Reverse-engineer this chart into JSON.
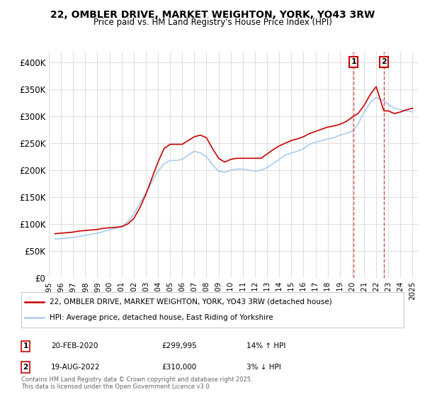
{
  "title_line1": "22, OMBLER DRIVE, MARKET WEIGHTON, YORK, YO43 3RW",
  "title_line2": "Price paid vs. HM Land Registry's House Price Index (HPI)",
  "ylabel": "",
  "background_color": "#ffffff",
  "plot_background": "#ffffff",
  "grid_color": "#e0e0e0",
  "red_line_color": "#cc0000",
  "blue_line_color": "#aaccee",
  "annotation1": {
    "label": "1",
    "date": "20-FEB-2020",
    "price": "£299,995",
    "hpi": "14% ↑ HPI",
    "x_year": 2020.13
  },
  "annotation2": {
    "label": "2",
    "date": "19-AUG-2022",
    "price": "£310,000",
    "hpi": "3% ↓ HPI",
    "x_year": 2022.63
  },
  "legend_line1": "22, OMBLER DRIVE, MARKET WEIGHTON, YORK, YO43 3RW (detached house)",
  "legend_line2": "HPI: Average price, detached house, East Riding of Yorkshire",
  "footer": "Contains HM Land Registry data © Crown copyright and database right 2025.\nThis data is licensed under the Open Government Licence v3.0.",
  "ylim": [
    0,
    420000
  ],
  "xlim_start": 1995,
  "xlim_end": 2025.5,
  "yticks": [
    0,
    50000,
    100000,
    150000,
    200000,
    250000,
    300000,
    350000,
    400000
  ],
  "ytick_labels": [
    "£0",
    "£50K",
    "£100K",
    "£150K",
    "£200K",
    "£250K",
    "£300K",
    "£350K",
    "£400K"
  ],
  "red_data": {
    "years": [
      1995.5,
      1996.0,
      1996.5,
      1997.0,
      1997.5,
      1998.0,
      1998.5,
      1999.0,
      1999.5,
      2000.0,
      2000.5,
      2001.0,
      2001.5,
      2002.0,
      2002.5,
      2003.0,
      2003.5,
      2004.0,
      2004.5,
      2005.0,
      2005.5,
      2006.0,
      2006.5,
      2007.0,
      2007.5,
      2008.0,
      2008.5,
      2009.0,
      2009.5,
      2010.0,
      2010.5,
      2011.0,
      2011.5,
      2012.0,
      2012.5,
      2013.0,
      2013.5,
      2014.0,
      2014.5,
      2015.0,
      2015.5,
      2016.0,
      2016.5,
      2017.0,
      2017.5,
      2018.0,
      2018.5,
      2019.0,
      2019.5,
      2020.13,
      2020.5,
      2021.0,
      2021.5,
      2022.0,
      2022.63,
      2023.0,
      2023.5,
      2024.0,
      2024.5,
      2025.0
    ],
    "values": [
      82000,
      83000,
      84000,
      85000,
      87000,
      88000,
      89000,
      90000,
      92000,
      93000,
      94000,
      95000,
      100000,
      110000,
      130000,
      155000,
      185000,
      215000,
      240000,
      248000,
      248000,
      248000,
      255000,
      262000,
      265000,
      260000,
      240000,
      222000,
      215000,
      220000,
      222000,
      222000,
      222000,
      222000,
      222000,
      230000,
      238000,
      245000,
      250000,
      255000,
      258000,
      262000,
      268000,
      272000,
      276000,
      280000,
      282000,
      285000,
      290000,
      299995,
      305000,
      320000,
      340000,
      355000,
      310000,
      310000,
      305000,
      308000,
      312000,
      315000
    ]
  },
  "blue_data": {
    "years": [
      1995.5,
      1996.0,
      1996.5,
      1997.0,
      1997.5,
      1998.0,
      1998.5,
      1999.0,
      1999.5,
      2000.0,
      2000.5,
      2001.0,
      2001.5,
      2002.0,
      2002.5,
      2003.0,
      2003.5,
      2004.0,
      2004.5,
      2005.0,
      2005.5,
      2006.0,
      2006.5,
      2007.0,
      2007.5,
      2008.0,
      2008.5,
      2009.0,
      2009.5,
      2010.0,
      2010.5,
      2011.0,
      2011.5,
      2012.0,
      2012.5,
      2013.0,
      2013.5,
      2014.0,
      2014.5,
      2015.0,
      2015.5,
      2016.0,
      2016.5,
      2017.0,
      2017.5,
      2018.0,
      2018.5,
      2019.0,
      2019.5,
      2020.0,
      2020.5,
      2021.0,
      2021.5,
      2022.0,
      2022.5,
      2023.0,
      2023.5,
      2024.0,
      2024.5,
      2025.0
    ],
    "values": [
      72000,
      73000,
      74000,
      75000,
      77000,
      79000,
      81000,
      83000,
      86000,
      89000,
      92000,
      96000,
      104000,
      118000,
      138000,
      158000,
      178000,
      198000,
      212000,
      218000,
      218000,
      220000,
      228000,
      235000,
      232000,
      225000,
      210000,
      198000,
      196000,
      200000,
      202000,
      202000,
      200000,
      198000,
      200000,
      205000,
      212000,
      220000,
      228000,
      232000,
      235000,
      240000,
      248000,
      252000,
      255000,
      258000,
      260000,
      265000,
      268000,
      272000,
      285000,
      308000,
      325000,
      335000,
      330000,
      322000,
      315000,
      312000,
      310000,
      308000
    ]
  }
}
